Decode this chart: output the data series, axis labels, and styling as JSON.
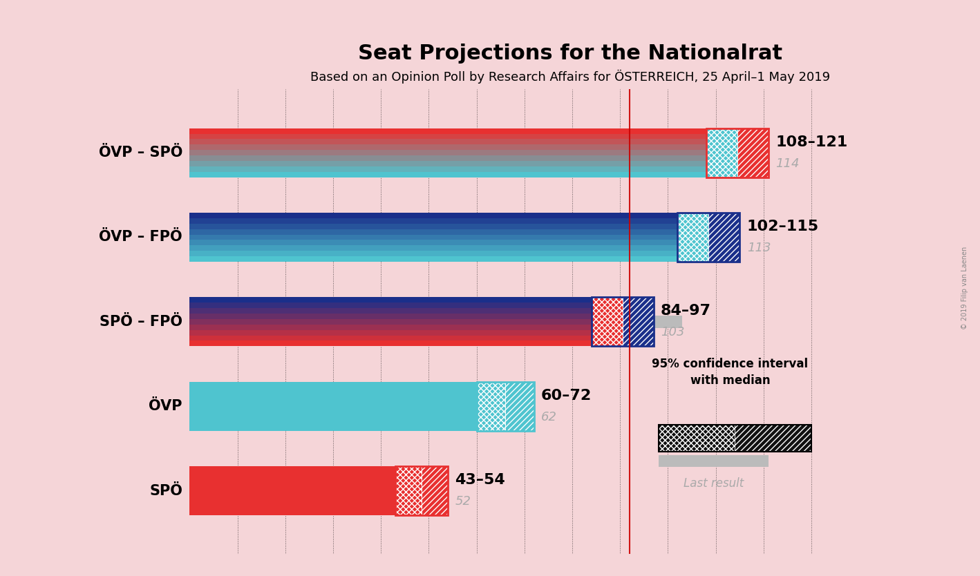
{
  "title": "Seat Projections for the Nationalrat",
  "subtitle": "Based on an Opinion Poll by Research Affairs for ÖSTERREICH, 25 April–1 May 2019",
  "copyright": "© 2019 Filip van Laenen",
  "background_color": "#f5d5d8",
  "parties": [
    {
      "label": "ÖVP – SPÖ",
      "color1": "#4fc4cf",
      "color2": "#e83030",
      "ci_low": 108,
      "ci_high": 121,
      "median": 114,
      "last_result": 114
    },
    {
      "label": "ÖVP – FPÖ",
      "color1": "#4fc4cf",
      "color2": "#1a2f8a",
      "ci_low": 102,
      "ci_high": 115,
      "median": 113,
      "last_result": 113
    },
    {
      "label": "SPÖ – FPÖ",
      "color1": "#e83030",
      "color2": "#1a2f8a",
      "ci_low": 84,
      "ci_high": 97,
      "median": 103,
      "last_result": 103
    },
    {
      "label": "ÖVP",
      "color1": "#4fc4cf",
      "color2": "#4fc4cf",
      "ci_low": 60,
      "ci_high": 72,
      "median": 62,
      "last_result": 62
    },
    {
      "label": "SPÖ",
      "color1": "#e83030",
      "color2": "#e83030",
      "ci_low": 43,
      "ci_high": 54,
      "median": 52,
      "last_result": 52
    }
  ],
  "majority_line": 92,
  "x_max": 130,
  "gray_color": "#aaaaaa",
  "bar_height": 0.58,
  "last_result_color": "#bbbbbb"
}
